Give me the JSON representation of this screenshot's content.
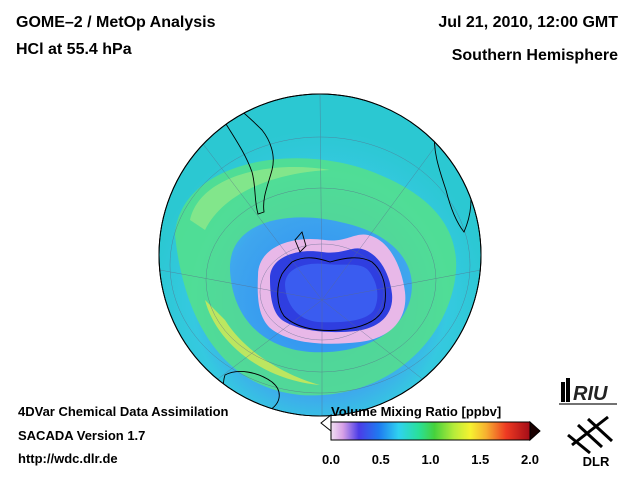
{
  "header": {
    "title": "GOME–2 / MetOp Analysis",
    "subtitle": "HCl at 55.4 hPa",
    "datetime": "Jul 21, 2010, 12:00 GMT",
    "region": "Southern Hemisphere"
  },
  "footer": {
    "line1": "4DVar Chemical Data Assimilation",
    "line2": "SACADA Version 1.7",
    "url": "http://wdc.dlr.de"
  },
  "colorbar": {
    "title": "Volume Mixing Ratio [ppbv]",
    "ticks": [
      "0.0",
      "0.5",
      "1.0",
      "1.5",
      "2.0"
    ],
    "min": 0.0,
    "max": 2.0
  },
  "logos": {
    "riu": "RIU",
    "dlr": "DLR"
  },
  "colors": {
    "background": "#ffffff",
    "text": "#000000"
  }
}
